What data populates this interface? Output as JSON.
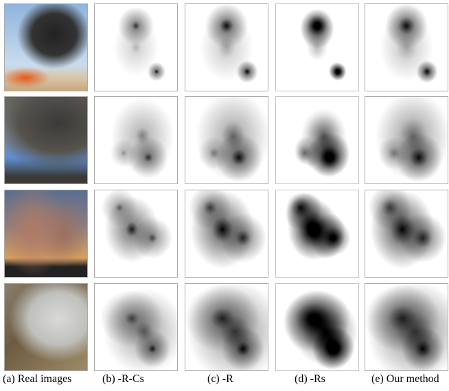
{
  "captions": [
    "(a) Real images",
    "(b) -R-Cs",
    "(c) -R",
    "(d) -Rs",
    "(e) Our method"
  ]
}
